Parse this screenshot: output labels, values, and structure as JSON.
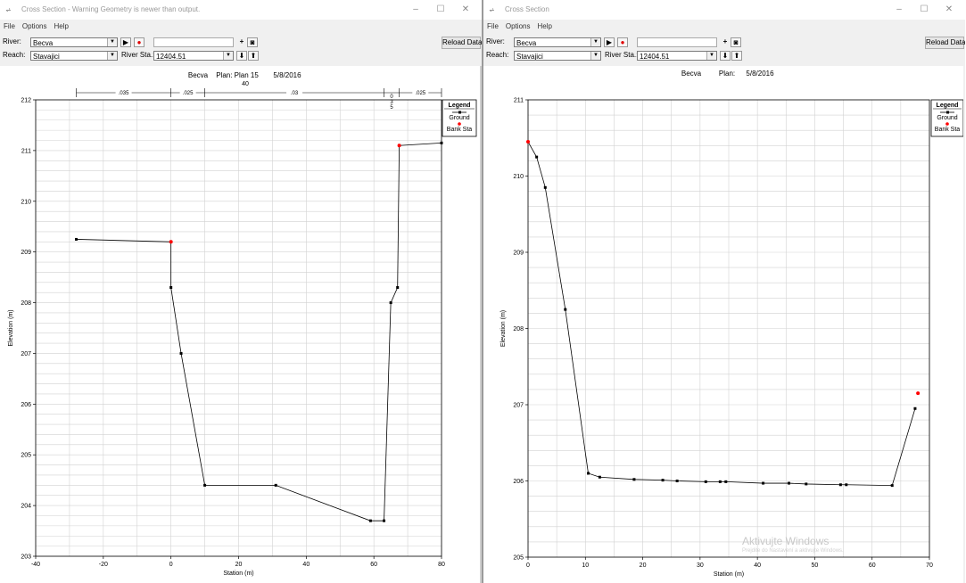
{
  "left": {
    "window_title": "Cross Section - Warning Geometry is newer than output.",
    "menu": [
      "File",
      "Options",
      "Help"
    ],
    "river_label": "River:",
    "river_value": "Becva",
    "reach_label": "Reach:",
    "reach_value": "Stavajici",
    "river_sta_label": "River Sta.:",
    "river_sta_value": "12404.51",
    "reload_label": "Reload Data",
    "plot_title_river": "Becva",
    "plot_title_plan": "Plan: Plan 15",
    "plot_title_date": "5/8/2016",
    "plot_title_sub": "40",
    "legend_title": "Legend",
    "legend_ground": "Ground",
    "legend_bank": "Bank Sta",
    "mannings": [
      ".035",
      ".025",
      ".03",
      ".025"
    ],
    "mannings_vertical": [
      "0",
      "3",
      "5"
    ]
  },
  "right": {
    "window_title": "Cross Section",
    "menu": [
      "File",
      "Options",
      "Help"
    ],
    "river_label": "River:",
    "river_value": "Becva",
    "reach_label": "Reach:",
    "reach_value": "Stavajici",
    "river_sta_label": "River Sta.:",
    "river_sta_value": "12404.51",
    "reload_label": "Reload Data",
    "plot_title_river": "Becva",
    "plot_title_plan": "Plan:",
    "plot_title_date": "5/8/2016",
    "legend_title": "Legend",
    "legend_ground": "Ground",
    "legend_bank": "Bank Sta",
    "watermark": "Aktivujte Windows",
    "watermark_sub": "Prejdite do Nastavení a aktivujte Windows."
  },
  "chart_data": [
    {
      "type": "line",
      "xlabel": "Station (m)",
      "ylabel": "Elevation (m)",
      "xlim": [
        -40,
        80
      ],
      "ylim": [
        203,
        212
      ],
      "xticks": [
        -40,
        -20,
        0,
        20,
        40,
        60,
        80
      ],
      "yticks": [
        203,
        204,
        205,
        206,
        207,
        208,
        209,
        210,
        211,
        212
      ],
      "ytick_labels": [
        "203",
        "204",
        "205",
        "206",
        "207",
        "208",
        "209",
        "210",
        "211",
        "212"
      ],
      "grid": true,
      "legend": "top-right",
      "series": [
        {
          "name": "Ground",
          "color": "#000000",
          "x": [
            -28,
            0,
            0,
            3,
            10,
            31,
            59,
            63,
            65,
            67,
            67.5,
            80
          ],
          "y": [
            209.25,
            209.2,
            208.3,
            207.0,
            204.4,
            204.4,
            203.7,
            203.7,
            208.0,
            208.3,
            211.1,
            211.15
          ]
        },
        {
          "name": "Bank Sta",
          "color": "#ff0000",
          "markers_only": true,
          "x": [
            0,
            67.5
          ],
          "y": [
            209.2,
            211.1
          ]
        }
      ],
      "mannings_breaks": [
        -28,
        0,
        10,
        63,
        67.5,
        80
      ]
    },
    {
      "type": "line",
      "xlabel": "Station (m)",
      "ylabel": "Elevation (m)",
      "xlim": [
        0,
        70
      ],
      "ylim": [
        205,
        211
      ],
      "xticks": [
        0,
        10,
        20,
        30,
        40,
        50,
        60,
        70
      ],
      "yticks": [
        205,
        206,
        207,
        208,
        209,
        210,
        211
      ],
      "ytick_labels": [
        "205",
        "206",
        "207",
        "208",
        "209",
        "210",
        "211"
      ],
      "grid": true,
      "legend": "top-right",
      "series": [
        {
          "name": "Ground",
          "color": "#000000",
          "x": [
            0,
            1.5,
            3,
            6.5,
            10.5,
            12.5,
            18.5,
            23.5,
            26,
            31,
            33.5,
            34.5,
            41,
            45.5,
            48.5,
            54.5,
            55.5,
            63.5,
            67.5
          ],
          "y": [
            210.45,
            210.25,
            209.85,
            208.25,
            206.1,
            206.05,
            206.02,
            206.01,
            206.0,
            205.99,
            205.99,
            205.99,
            205.97,
            205.97,
            205.96,
            205.95,
            205.95,
            205.94,
            206.95
          ]
        },
        {
          "name": "Bank Sta",
          "color": "#ff0000",
          "markers_only": true,
          "x": [
            0,
            68
          ],
          "y": [
            210.45,
            207.15
          ]
        }
      ]
    }
  ]
}
